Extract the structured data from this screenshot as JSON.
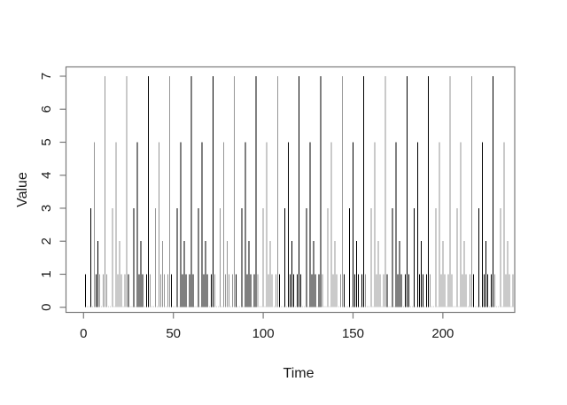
{
  "figure": {
    "background": "#ffffff",
    "axis_color": "#7a7a7a",
    "text_color": "#1a1a1a",
    "zero_dot_color": "#c4c4c4"
  },
  "chart_data": {
    "type": "bar",
    "subtype": "h-spike (R type='h' time series plot)",
    "title": "",
    "xlabel": "Time",
    "ylabel": "Value",
    "xlim": [
      0,
      240
    ],
    "ylim": [
      0,
      7
    ],
    "xticks": [
      0,
      50,
      100,
      150,
      200
    ],
    "yticks": [
      0,
      1,
      2,
      3,
      4,
      5,
      6,
      7
    ],
    "grid": false,
    "legend": false,
    "n_points": 240,
    "x_start": 1,
    "x_step": 1,
    "period_length": 12,
    "period_values": [
      1,
      0,
      0,
      3,
      0,
      5,
      1,
      2,
      1,
      0,
      1,
      7
    ],
    "values": [
      1,
      0,
      0,
      3,
      0,
      5,
      1,
      2,
      1,
      0,
      1,
      7,
      1,
      0,
      0,
      3,
      0,
      5,
      1,
      2,
      1,
      0,
      1,
      7,
      1,
      0,
      0,
      3,
      0,
      5,
      1,
      2,
      1,
      0,
      1,
      7,
      1,
      0,
      0,
      3,
      0,
      5,
      1,
      2,
      1,
      0,
      1,
      7,
      1,
      0,
      0,
      3,
      0,
      5,
      1,
      2,
      1,
      0,
      1,
      7,
      1,
      0,
      0,
      3,
      0,
      5,
      1,
      2,
      1,
      0,
      1,
      7,
      1,
      0,
      0,
      3,
      0,
      5,
      1,
      2,
      1,
      0,
      1,
      7,
      1,
      0,
      0,
      3,
      0,
      5,
      1,
      2,
      1,
      0,
      1,
      7,
      1,
      0,
      0,
      3,
      0,
      5,
      1,
      2,
      1,
      0,
      1,
      7,
      1,
      0,
      0,
      3,
      0,
      5,
      1,
      2,
      1,
      0,
      1,
      7,
      1,
      0,
      0,
      3,
      0,
      5,
      1,
      2,
      1,
      0,
      1,
      7,
      1,
      0,
      0,
      3,
      0,
      5,
      1,
      2,
      1,
      0,
      1,
      7,
      1,
      0,
      0,
      3,
      0,
      5,
      1,
      2,
      1,
      0,
      1,
      7,
      1,
      0,
      0,
      3,
      0,
      5,
      1,
      2,
      1,
      0,
      1,
      7,
      1,
      0,
      0,
      3,
      0,
      5,
      1,
      2,
      1,
      0,
      1,
      7,
      1,
      0,
      0,
      3,
      0,
      5,
      1,
      2,
      1,
      0,
      1,
      7,
      1,
      0,
      0,
      3,
      0,
      5,
      1,
      2,
      1,
      0,
      1,
      7,
      1,
      0,
      0,
      3,
      0,
      5,
      1,
      2,
      1,
      0,
      1,
      7,
      1,
      0,
      0,
      3,
      0,
      5,
      1,
      2,
      1,
      0,
      1,
      7,
      1,
      0,
      0,
      3,
      0,
      5,
      1,
      2,
      1,
      0,
      1,
      7
    ],
    "colors": "BGGBGGBBGBGGGGGGGGGGGGGGBBBBBBBBBBBBGGGGGGGGGGGGBBBBBBBBBBBBBBBBBBBBBBBBGGGGGGGGGGGGBBBBBBBBBBBBGGGGGGGGGGGGBBBBBBBBBBBBBBBBBBBBBBBBGGGGGGGGGGGGBBBBBBBBBBBBGGGGGGGGGGGGBBBBBBBBBBBBBBBBBBBBBBBBGGGGGGGGGGGGGGGGGGGGGGGGBBBBBBBBBBBBGGGGGGGGGGGG",
    "color_map": {
      "B": "#000000",
      "G": "#969696"
    },
    "spike_width": 1
  }
}
